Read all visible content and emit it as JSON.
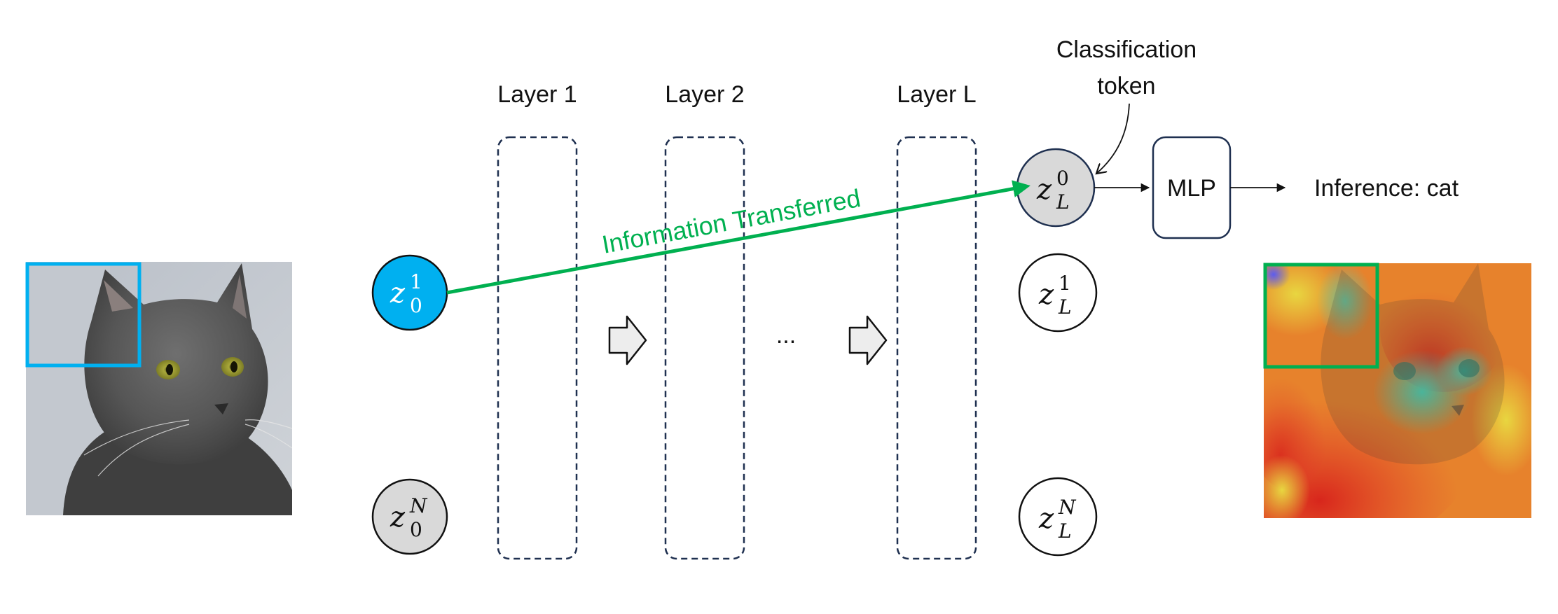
{
  "layers": [
    {
      "label": "Layer 1"
    },
    {
      "label": "Layer 2"
    },
    {
      "label": "Layer L"
    }
  ],
  "ellipsis": "...",
  "classification_token_label": {
    "line1": "Classification",
    "line2": "token"
  },
  "mlp_label": "MLP",
  "inference_label": "Inference: cat",
  "information_label": "Information Transferred",
  "tokens": {
    "input_first": {
      "var": "z",
      "sub": "0",
      "sup": "1"
    },
    "input_last": {
      "var": "z",
      "sub": "0",
      "sup": "N"
    },
    "output_cls": {
      "var": "z",
      "sub": "L",
      "sup": "0"
    },
    "output_first": {
      "var": "z",
      "sub": "L",
      "sup": "1"
    },
    "output_last": {
      "var": "z",
      "sub": "L",
      "sup": "N"
    }
  },
  "colors": {
    "highlight_token": "#00b0f0",
    "gray_token": "#d9d9d9",
    "patch_box_input": "#00b0f0",
    "patch_box_output": "#00b050",
    "info_arrow": "#00b050",
    "layer_border": "#1f3050",
    "mlp_border": "#1f3050"
  },
  "icons": {
    "input_image": "cat-photo",
    "output_image": "cat-attention-heatmap",
    "step_arrow": "block-right-arrow-icon"
  }
}
